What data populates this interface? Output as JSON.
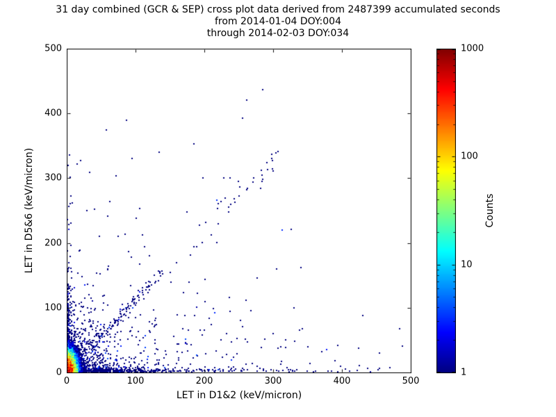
{
  "title": {
    "line1": "31 day combined (GCR & SEP) cross plot data derived from 2487399 accumulated seconds",
    "line2": "from 2014-01-04 DOY:004",
    "line3": "through 2014-02-03 DOY:034"
  },
  "axes": {
    "xlabel": "LET in D1&2 (keV/micron)",
    "ylabel": "LET in D5&6 (keV/micron)",
    "xticks": [
      0,
      100,
      200,
      300,
      400,
      500
    ],
    "yticks": [
      0,
      100,
      200,
      300,
      400,
      500
    ]
  },
  "colorbar": {
    "label": "Counts",
    "ticks": [
      1,
      10,
      100,
      1000
    ]
  },
  "chart_data": {
    "type": "heatmap-scatter",
    "title": "31 day combined (GCR & SEP) cross plot data derived from 2487399 accumulated seconds from 2014-01-04 DOY:004 through 2014-02-03 DOY:034",
    "xlabel": "LET in D1&2 (keV/micron)",
    "ylabel": "LET in D5&6 (keV/micron)",
    "xlim": [
      0,
      500
    ],
    "ylim": [
      0,
      500
    ],
    "xticks": [
      0,
      100,
      200,
      300,
      400,
      500
    ],
    "yticks": [
      0,
      100,
      200,
      300,
      400,
      500
    ],
    "grid": false,
    "legend": "none",
    "color_scale": {
      "label": "Counts",
      "type": "log",
      "min": 1,
      "max": 1000,
      "colormap": "jet",
      "ticks": [
        1,
        10,
        100,
        1000
      ]
    },
    "description": "2D histogram cross plot of coincident LET events. Hot core (counts approaching 1000, red/orange) at the origin below ~20 keV/micron, yellow-green-cyan fringe to ~40, dense single-count (dark blue) bands hugging both axes (along y=0 out to ~350 and along x=0 up to ~330), a sparse diagonal band near y = 1.1x out to ~(140,155) with a looser continuation from ~(180,200) to ~(300,330), and isolated single-count events scattered across the plane up to ~(285,437).",
    "seed": 20140104,
    "core": {
      "sx": 1,
      "sy": 2.2,
      "r0": 22,
      "pow": 1.6,
      "cell": 1.4,
      "xmax": 48,
      "ymax": 64,
      "noise": 0.9,
      "fringe_prob": 0.25,
      "fringe_margin": 0.8
    },
    "bands": [
      {
        "name": "x-axis-band",
        "count": 850,
        "x": {
          "dist": "exp",
          "scale": 85,
          "max": 495
        },
        "y": {
          "dist": "exp",
          "scale": 2.2,
          "max": 40
        }
      },
      {
        "name": "y-axis-band",
        "count": 480,
        "x": {
          "dist": "exp",
          "scale": 2.2,
          "max": 40
        },
        "y": {
          "dist": "exp",
          "scale": 55,
          "max": 340
        }
      },
      {
        "name": "origin-wedge",
        "count": 700,
        "x": {
          "dist": "exp",
          "scale": 22,
          "max": 300
        },
        "y": {
          "dist": "exp",
          "scale": 22,
          "max": 300
        }
      },
      {
        "name": "lower-diagonal",
        "count": 150,
        "x": {
          "dist": "uniform",
          "min": 0,
          "max": 140
        },
        "slope": 1.12,
        "jitter": 6
      },
      {
        "name": "upper-diagonal",
        "count": 30,
        "x": {
          "dist": "uniform",
          "min": 180,
          "max": 310
        },
        "slope": 1.1,
        "jitter": 16
      },
      {
        "name": "sparse-field",
        "count": 380,
        "x": {
          "dist": "exp",
          "scale": 110,
          "max": 495
        },
        "y": {
          "dist": "exp",
          "scale": 65,
          "max": 440
        }
      }
    ],
    "outliers": [
      [
        262,
        421
      ],
      [
        285,
        437
      ],
      [
        20,
        327
      ],
      [
        15,
        322
      ],
      [
        5,
        301
      ],
      [
        95,
        331
      ],
      [
        40,
        252
      ],
      [
        8,
        262
      ],
      [
        198,
        300
      ],
      [
        228,
        300
      ],
      [
        235,
        255
      ],
      [
        250,
        272
      ],
      [
        262,
        282
      ],
      [
        272,
        300
      ],
      [
        283,
        312
      ],
      [
        298,
        331
      ],
      [
        210,
        212
      ],
      [
        220,
        230
      ],
      [
        150,
        155
      ],
      [
        160,
        170
      ],
      [
        305,
        160
      ],
      [
        340,
        162
      ],
      [
        430,
        88
      ],
      [
        470,
        8
      ],
      [
        455,
        30
      ],
      [
        300,
        60
      ],
      [
        350,
        40
      ],
      [
        390,
        18
      ],
      [
        330,
        100
      ],
      [
        120,
        180
      ],
      [
        75,
        210
      ],
      [
        60,
        160
      ]
    ]
  }
}
